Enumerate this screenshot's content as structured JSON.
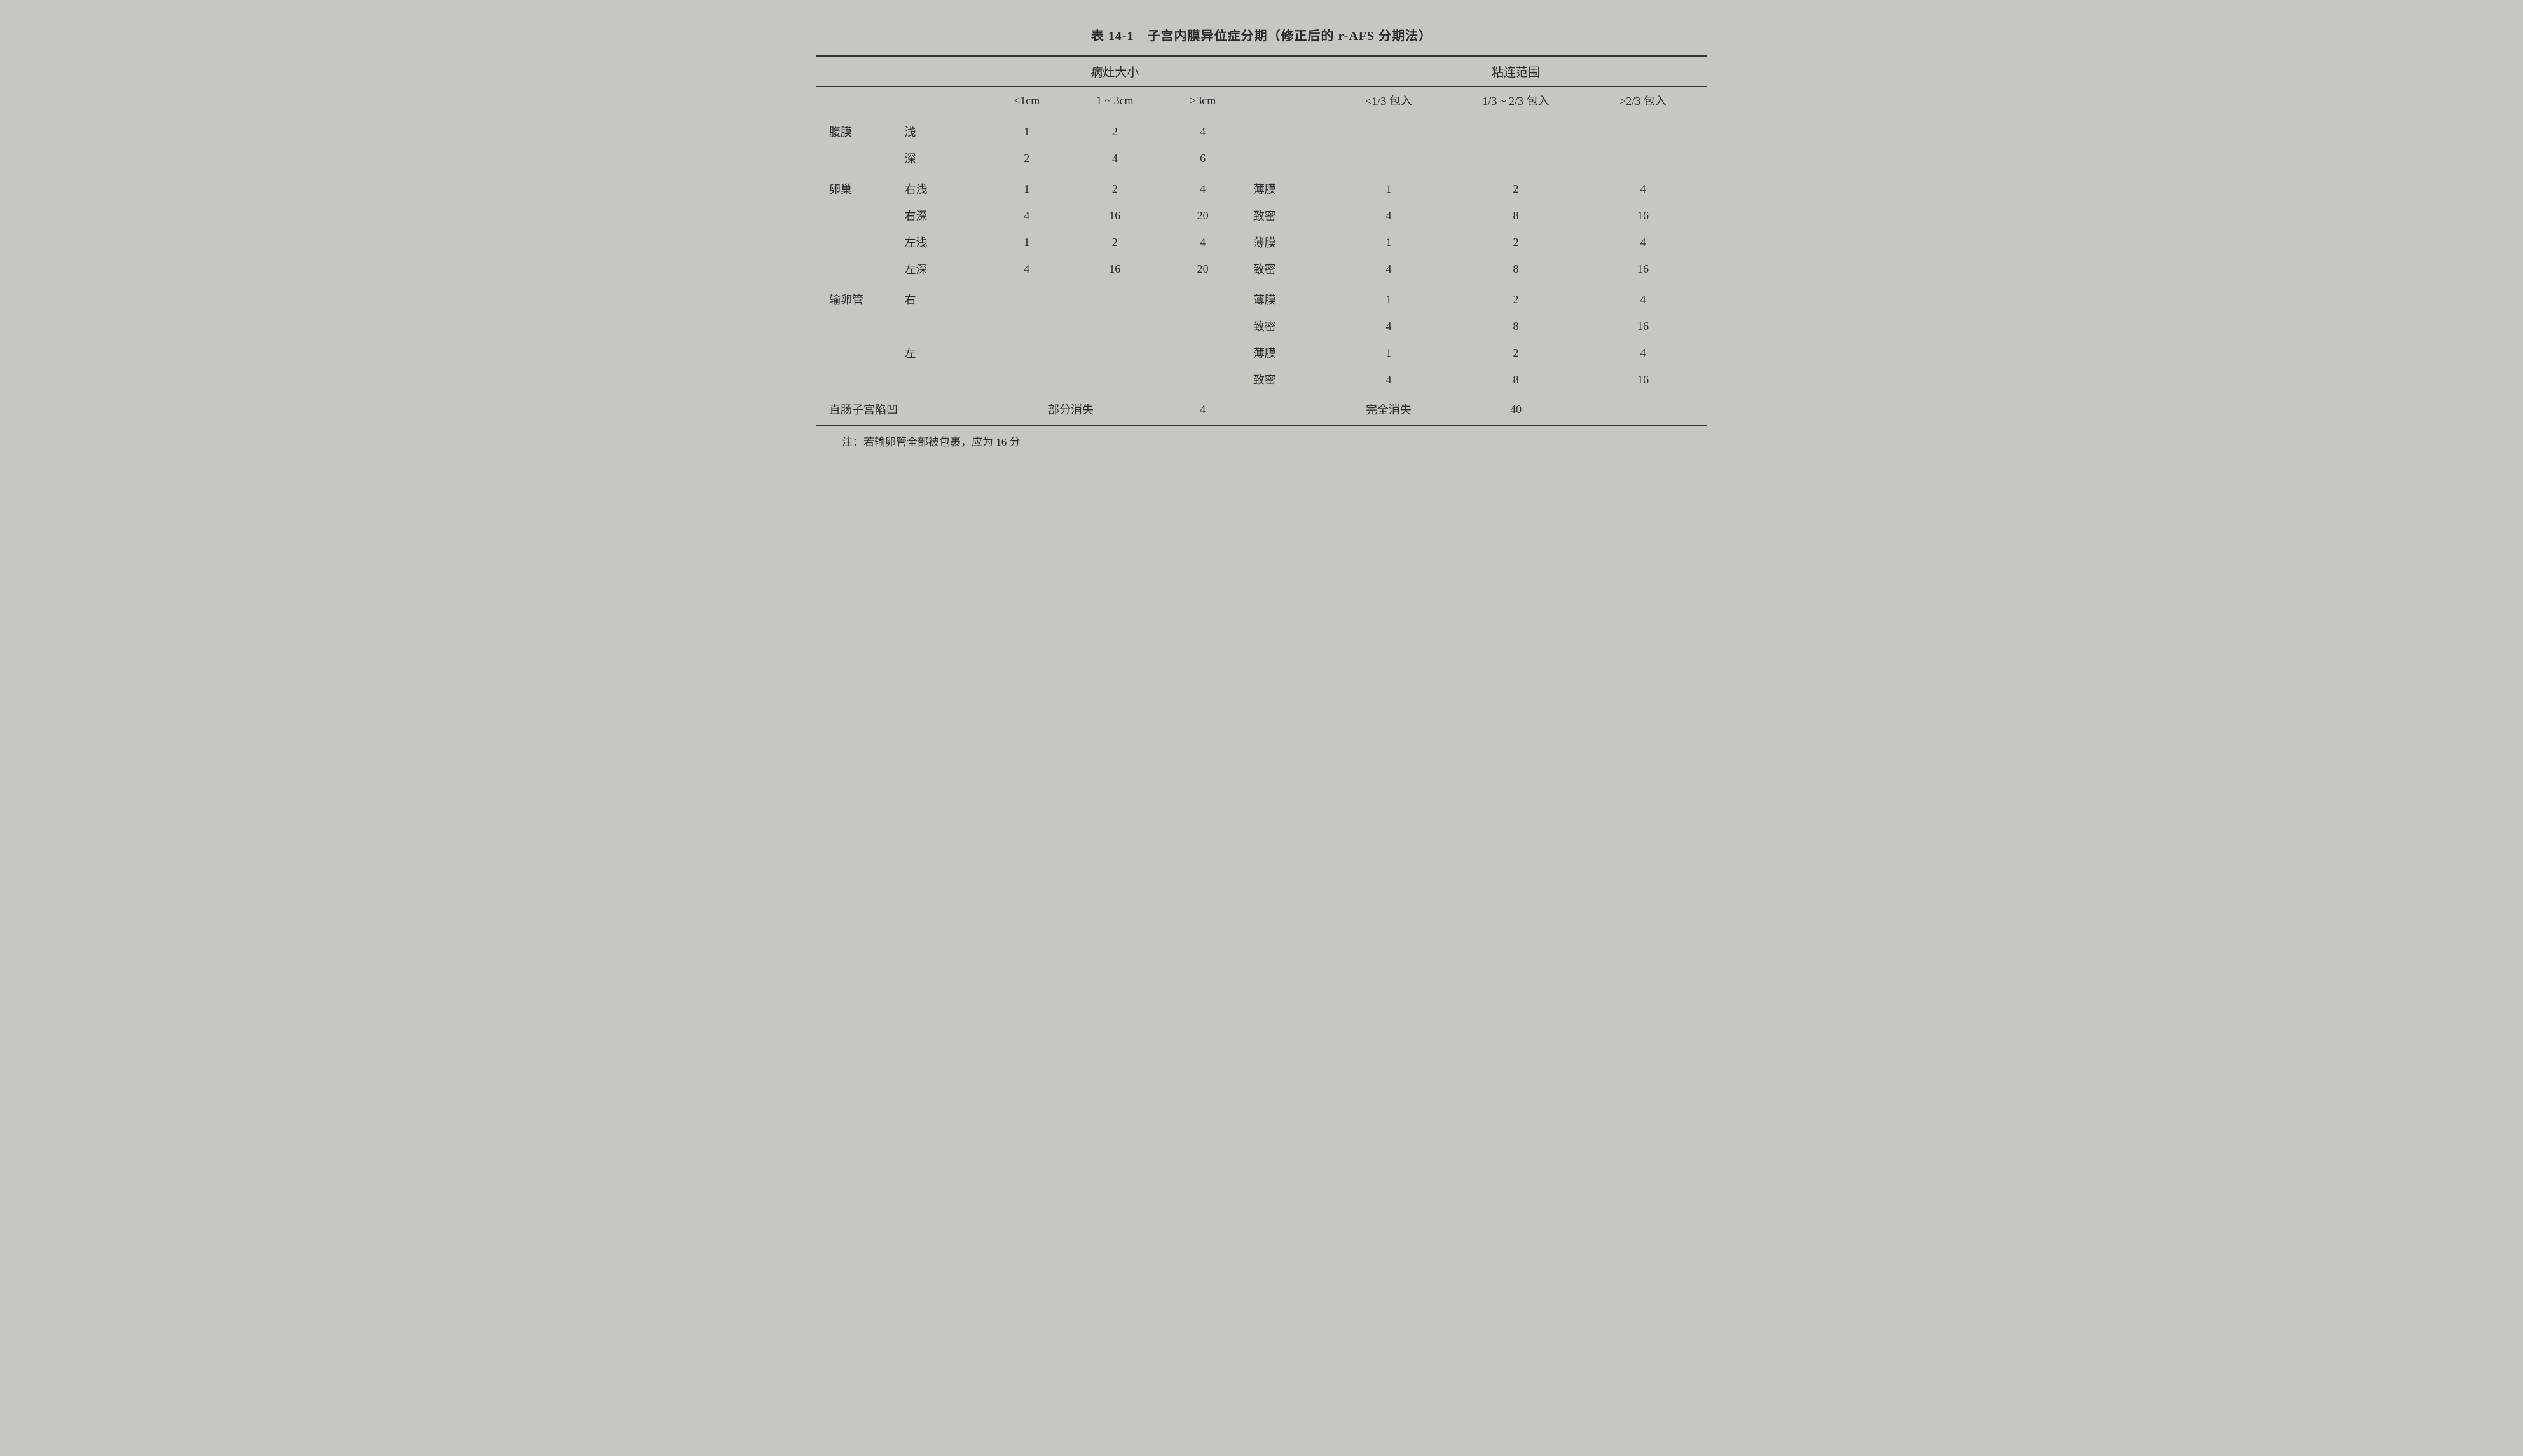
{
  "title": "表 14-1　子宫内膜异位症分期（修正后的 r-AFS 分期法）",
  "headers": {
    "lesion_size": "病灶大小",
    "adhesion_scope": "粘连范围",
    "size_cols": [
      "<1cm",
      "1 ~ 3cm",
      ">3cm"
    ],
    "adhesion_cols": [
      "<1/3 包入",
      "1/3 ~ 2/3 包入",
      ">2/3 包入"
    ]
  },
  "sections": {
    "peritoneum": {
      "label": "腹膜",
      "rows": [
        {
          "sub": "浅",
          "sizes": [
            "1",
            "2",
            "4"
          ],
          "adh_type": "",
          "adh": [
            "",
            "",
            ""
          ]
        },
        {
          "sub": "深",
          "sizes": [
            "2",
            "4",
            "6"
          ],
          "adh_type": "",
          "adh": [
            "",
            "",
            ""
          ]
        }
      ]
    },
    "ovary": {
      "label": "卵巢",
      "rows": [
        {
          "sub": "右浅",
          "sizes": [
            "1",
            "2",
            "4"
          ],
          "adh_type": "薄膜",
          "adh": [
            "1",
            "2",
            "4"
          ]
        },
        {
          "sub": "右深",
          "sizes": [
            "4",
            "16",
            "20"
          ],
          "adh_type": "致密",
          "adh": [
            "4",
            "8",
            "16"
          ]
        },
        {
          "sub": "左浅",
          "sizes": [
            "1",
            "2",
            "4"
          ],
          "adh_type": "薄膜",
          "adh": [
            "1",
            "2",
            "4"
          ]
        },
        {
          "sub": "左深",
          "sizes": [
            "4",
            "16",
            "20"
          ],
          "adh_type": "致密",
          "adh": [
            "4",
            "8",
            "16"
          ]
        }
      ]
    },
    "fallopian": {
      "label": "输卵管",
      "rows": [
        {
          "sub": "右",
          "sizes": [
            "",
            "",
            ""
          ],
          "adh_type": "薄膜",
          "adh": [
            "1",
            "2",
            "4"
          ]
        },
        {
          "sub": "",
          "sizes": [
            "",
            "",
            ""
          ],
          "adh_type": "致密",
          "adh": [
            "4",
            "8",
            "16"
          ]
        },
        {
          "sub": "左",
          "sizes": [
            "",
            "",
            ""
          ],
          "adh_type": "薄膜",
          "adh": [
            "1",
            "2",
            "4"
          ]
        },
        {
          "sub": "",
          "sizes": [
            "",
            "",
            ""
          ],
          "adh_type": "致密",
          "adh": [
            "4",
            "8",
            "16"
          ]
        }
      ]
    }
  },
  "footer_row": {
    "label": "直肠子宫陷凹",
    "partial_label": "部分消失",
    "partial_value": "4",
    "complete_label": "完全消失",
    "complete_value": "40"
  },
  "note": "注：若输卵管全部被包裹，应为 16 分",
  "style": {
    "background_color": "#c5c8c1",
    "text_color": "#2a2a2a",
    "border_color": "#333333",
    "title_fontsize": 20,
    "body_fontsize": 18,
    "note_fontsize": 17,
    "font_family": "SimSun, 宋体, serif"
  }
}
